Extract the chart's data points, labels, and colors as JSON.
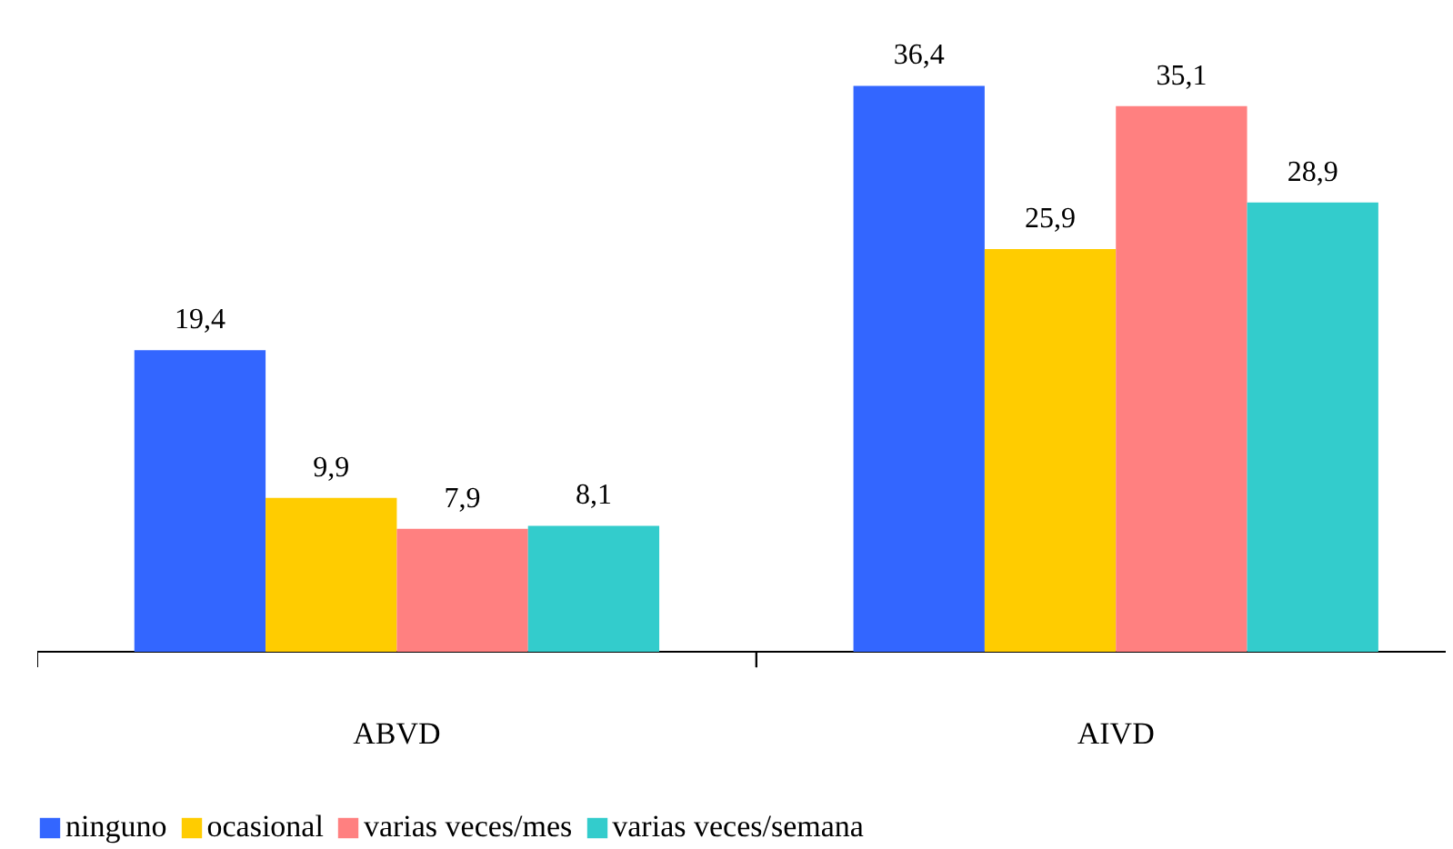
{
  "chart_data": {
    "type": "bar",
    "categories": [
      "ABVD",
      "AIVD"
    ],
    "series": [
      {
        "name": "ninguno",
        "color": "#3366ff",
        "values": [
          19.4,
          36.4
        ],
        "value_labels": [
          "19,4",
          "36,4"
        ]
      },
      {
        "name": "ocasional",
        "color": "#ffcc00",
        "values": [
          9.9,
          25.9
        ],
        "value_labels": [
          "9,9",
          "25,9"
        ]
      },
      {
        "name": "varias veces/mes",
        "color": "#ff8080",
        "values": [
          7.9,
          35.1
        ],
        "value_labels": [
          "7,9",
          "35,1"
        ]
      },
      {
        "name": "varias veces/semana",
        "color": "#33cccc",
        "values": [
          8.1,
          28.9
        ],
        "value_labels": [
          "8,1",
          "28,9"
        ]
      }
    ],
    "grid": false,
    "legend": "bottom"
  }
}
